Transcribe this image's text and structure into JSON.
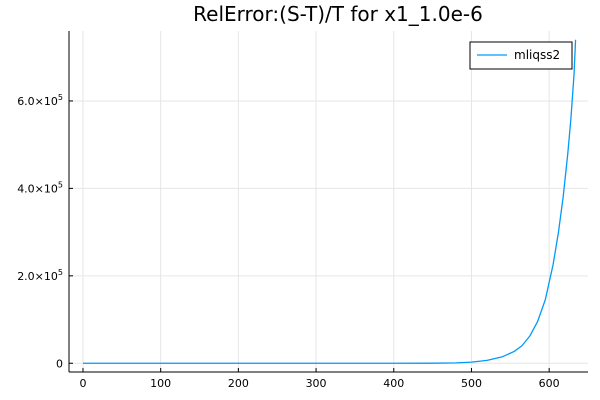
{
  "chart_data": {
    "type": "line",
    "title": "RelError:(S-T)/T for x1_1.0e-6",
    "xlabel": "",
    "ylabel": "",
    "xlim": [
      -18,
      650
    ],
    "ylim": [
      -20000,
      760000
    ],
    "grid": true,
    "legend_position": "top-right",
    "xticks": [
      0,
      100,
      200,
      300,
      400,
      500,
      600
    ],
    "xtick_labels": [
      "0",
      "100",
      "200",
      "300",
      "400",
      "500",
      "600"
    ],
    "yticks": [
      0,
      200000,
      400000,
      600000
    ],
    "ytick_labels": [
      {
        "base": "0",
        "exp": ""
      },
      {
        "base": "2.0×10",
        "exp": "5"
      },
      {
        "base": "4.0×10",
        "exp": "5"
      },
      {
        "base": "6.0×10",
        "exp": "5"
      }
    ],
    "series": [
      {
        "name": "mliqss2",
        "color": "#009af9",
        "x": [
          0,
          100,
          200,
          300,
          400,
          450,
          480,
          500,
          520,
          540,
          555,
          565,
          575,
          585,
          595,
          605,
          612,
          618,
          624,
          628,
          632,
          634
        ],
        "y": [
          0,
          0,
          0,
          0,
          0,
          200,
          800,
          2500,
          6500,
          15000,
          27000,
          40000,
          62000,
          95000,
          145000,
          225000,
          300000,
          380000,
          480000,
          560000,
          660000,
          740000
        ]
      }
    ]
  }
}
